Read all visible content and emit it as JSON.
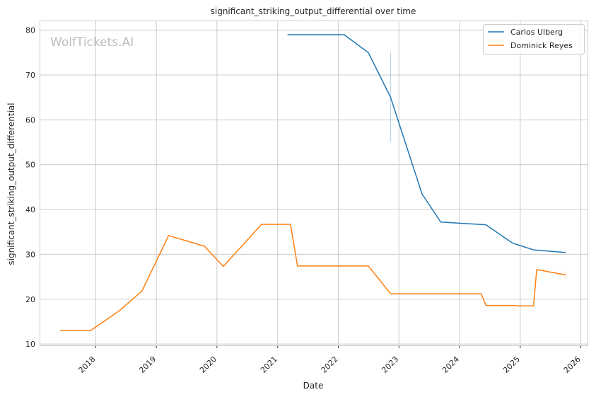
{
  "chart_data": {
    "type": "line",
    "title": "significant_striking_output_differential over time",
    "xlabel": "Date",
    "ylabel": "significant_striking_output_differential",
    "watermark": "WolfTickets.AI",
    "xlim": [
      "2017-02-01",
      "2026-02-10"
    ],
    "ylim": [
      9.7,
      82
    ],
    "x_ticks": [
      "2018",
      "2019",
      "2020",
      "2021",
      "2022",
      "2023",
      "2024",
      "2025",
      "2026"
    ],
    "y_ticks": [
      10,
      20,
      30,
      40,
      50,
      60,
      70,
      80
    ],
    "grid": true,
    "legend_position": "top-right",
    "series": [
      {
        "name": "Carlos Ulberg",
        "color": "#1f77b4",
        "points": [
          [
            "2021-03-01",
            79
          ],
          [
            "2022-02-05",
            79
          ],
          [
            "2022-07-01",
            75
          ],
          [
            "2022-11-12",
            65
          ],
          [
            "2023-05-20",
            43.5
          ],
          [
            "2023-09-10",
            37.2
          ],
          [
            "2024-06-08",
            36.6
          ],
          [
            "2024-11-16",
            32.5
          ],
          [
            "2024-12-20",
            32.1
          ],
          [
            "2025-03-22",
            31
          ],
          [
            "2025-10-01",
            30.4
          ]
        ],
        "error_bars": [
          {
            "x": "2022-11-12",
            "low": 55,
            "high": 75
          }
        ]
      },
      {
        "name": "Dominick Reyes",
        "color": "#ff7f0e",
        "points": [
          [
            "2017-06-01",
            13
          ],
          [
            "2017-12-01",
            13
          ],
          [
            "2018-05-26",
            17.5
          ],
          [
            "2018-10-06",
            21.8
          ],
          [
            "2019-03-16",
            34.2
          ],
          [
            "2019-10-18",
            31.8
          ],
          [
            "2020-02-08",
            27.3
          ],
          [
            "2020-09-26",
            36.7
          ],
          [
            "2021-03-19",
            36.7
          ],
          [
            "2021-04-30",
            27.4
          ],
          [
            "2022-07-01",
            27.4
          ],
          [
            "2022-11-12",
            21.2
          ],
          [
            "2024-05-11",
            21.2
          ],
          [
            "2024-06-08",
            18.6
          ],
          [
            "2024-11-16",
            18.6
          ],
          [
            "2024-12-20",
            18.5
          ],
          [
            "2025-03-22",
            18.5
          ],
          [
            "2025-04-10",
            26.6
          ],
          [
            "2025-10-01",
            25.4
          ]
        ],
        "error_bars": [
          {
            "x": "2025-10-01",
            "low": 24.5,
            "high": 26.3
          }
        ]
      }
    ]
  }
}
